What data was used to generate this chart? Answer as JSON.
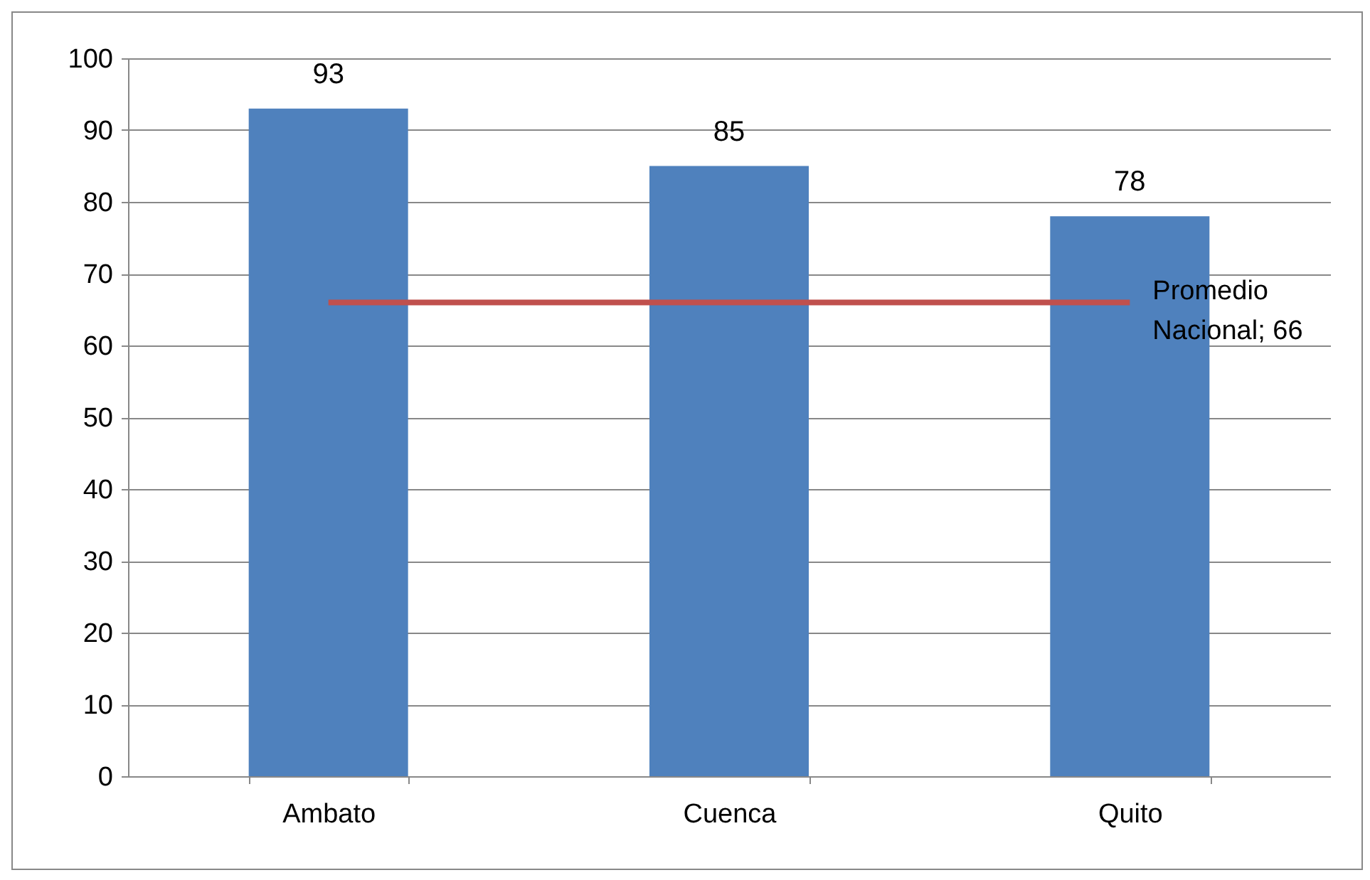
{
  "chart_data": {
    "type": "bar",
    "categories": [
      "Ambato",
      "Cuenca",
      "Quito"
    ],
    "values": [
      93,
      85,
      78
    ],
    "color": "#4f81bd",
    "data_labels": true,
    "ylim": [
      0,
      100
    ],
    "yticks": [
      0,
      10,
      20,
      30,
      40,
      50,
      60,
      70,
      80,
      90,
      100
    ],
    "grid": "y",
    "ref_lines": [
      {
        "axis": "y",
        "value": 66,
        "label": "Promedio Nacional; 66",
        "color": "#c0504d"
      }
    ]
  }
}
